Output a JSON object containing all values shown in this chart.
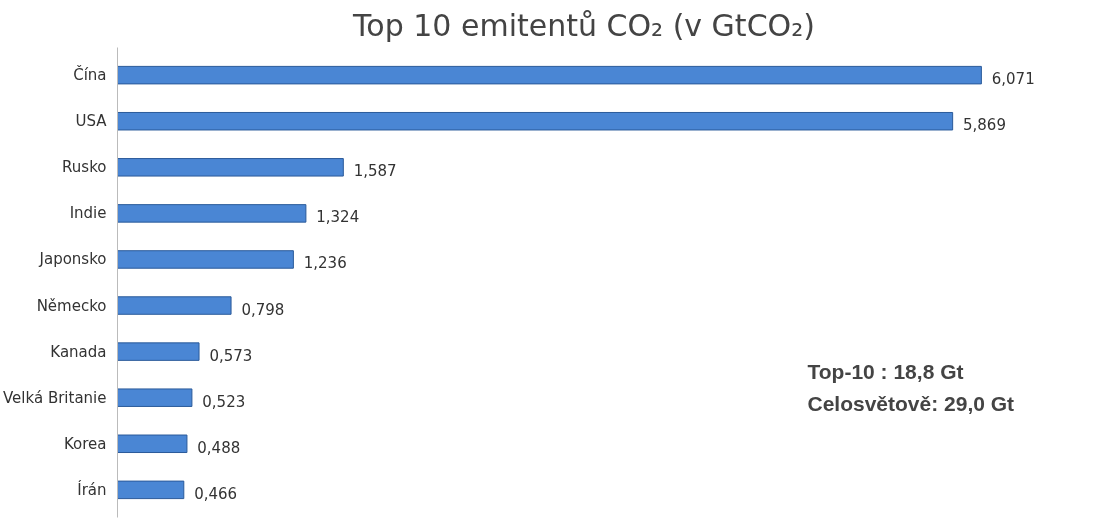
{
  "chart_data": {
    "type": "bar",
    "orientation": "horizontal",
    "title": "Top 10 emitentů CO₂ (v GtCO₂)",
    "categories": [
      "Čína",
      "USA",
      "Rusko",
      "Indie",
      "Japonsko",
      "Německo",
      "Kanada",
      "Velká Britanie",
      "Korea",
      "Írán"
    ],
    "values": [
      6.071,
      5.869,
      1.587,
      1.324,
      1.236,
      0.798,
      0.573,
      0.523,
      0.488,
      0.466
    ],
    "value_labels": [
      "6,071",
      "5,869",
      "1,587",
      "1,324",
      "1,236",
      "0,798",
      "0,573",
      "0,523",
      "0,488",
      "0,466"
    ],
    "color": "#4a86d4",
    "annotations": [
      "Top-10 : 18,8 Gt",
      "Celosvětově: 29,0 Gt"
    ],
    "grid": false
  }
}
